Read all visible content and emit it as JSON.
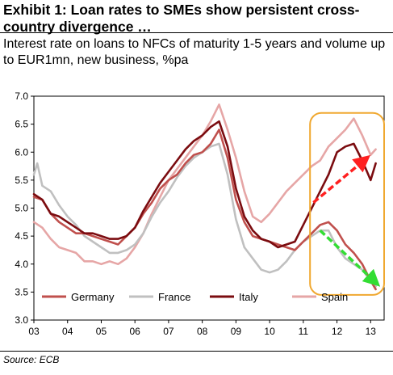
{
  "exhibit": {
    "title": "Exhibit 1: Loan rates to SMEs show persistent cross-country divergence …",
    "subtitle": "Interest rate on loans to NFCs of maturity 1-5 years and volume up to EUR1mn, new business, %pa",
    "source": "Source: ECB"
  },
  "chart_data": {
    "type": "line",
    "title": "",
    "xlabel": "",
    "ylabel": "",
    "xlim": [
      2003,
      2013.4
    ],
    "ylim": [
      3.0,
      7.0
    ],
    "x_ticks": [
      "03",
      "04",
      "05",
      "06",
      "07",
      "08",
      "09",
      "10",
      "11",
      "12",
      "13"
    ],
    "y_ticks": [
      "7.0",
      "6.5",
      "6.0",
      "5.5",
      "5.0",
      "4.5",
      "4.0",
      "3.5",
      "3.0"
    ],
    "grid": false,
    "legend_position": "bottom-inside",
    "series": [
      {
        "name": "Germany",
        "color": "#c0504d",
        "points": [
          [
            2003,
            5.2
          ],
          [
            2003.25,
            5.15
          ],
          [
            2003.5,
            4.9
          ],
          [
            2003.75,
            4.75
          ],
          [
            2004,
            4.65
          ],
          [
            2004.25,
            4.55
          ],
          [
            2004.5,
            4.55
          ],
          [
            2004.75,
            4.5
          ],
          [
            2005,
            4.45
          ],
          [
            2005.25,
            4.4
          ],
          [
            2005.5,
            4.35
          ],
          [
            2005.75,
            4.5
          ],
          [
            2006,
            4.65
          ],
          [
            2006.25,
            4.9
          ],
          [
            2006.5,
            5.1
          ],
          [
            2006.75,
            5.35
          ],
          [
            2007,
            5.5
          ],
          [
            2007.25,
            5.6
          ],
          [
            2007.5,
            5.8
          ],
          [
            2007.75,
            5.95
          ],
          [
            2008,
            6.0
          ],
          [
            2008.25,
            6.15
          ],
          [
            2008.5,
            6.4
          ],
          [
            2008.75,
            5.9
          ],
          [
            2009,
            5.15
          ],
          [
            2009.25,
            4.75
          ],
          [
            2009.5,
            4.5
          ],
          [
            2009.75,
            4.45
          ],
          [
            2010,
            4.4
          ],
          [
            2010.25,
            4.35
          ],
          [
            2010.5,
            4.3
          ],
          [
            2010.75,
            4.25
          ],
          [
            2011,
            4.4
          ],
          [
            2011.25,
            4.55
          ],
          [
            2011.5,
            4.7
          ],
          [
            2011.75,
            4.75
          ],
          [
            2012,
            4.6
          ],
          [
            2012.25,
            4.35
          ],
          [
            2012.5,
            4.2
          ],
          [
            2012.75,
            4.0
          ],
          [
            2013,
            3.7
          ],
          [
            2013.15,
            3.55
          ]
        ]
      },
      {
        "name": "France",
        "color": "#c0c0c0",
        "points": [
          [
            2003,
            5.6
          ],
          [
            2003.1,
            5.8
          ],
          [
            2003.25,
            5.4
          ],
          [
            2003.5,
            5.3
          ],
          [
            2003.75,
            5.05
          ],
          [
            2004,
            4.85
          ],
          [
            2004.25,
            4.7
          ],
          [
            2004.5,
            4.5
          ],
          [
            2004.75,
            4.4
          ],
          [
            2005,
            4.3
          ],
          [
            2005.25,
            4.2
          ],
          [
            2005.5,
            4.2
          ],
          [
            2005.75,
            4.25
          ],
          [
            2006,
            4.35
          ],
          [
            2006.25,
            4.55
          ],
          [
            2006.5,
            4.85
          ],
          [
            2006.75,
            5.1
          ],
          [
            2007,
            5.3
          ],
          [
            2007.25,
            5.55
          ],
          [
            2007.5,
            5.75
          ],
          [
            2007.75,
            5.9
          ],
          [
            2008,
            6.0
          ],
          [
            2008.25,
            6.1
          ],
          [
            2008.5,
            6.15
          ],
          [
            2008.75,
            5.6
          ],
          [
            2009,
            4.8
          ],
          [
            2009.25,
            4.3
          ],
          [
            2009.5,
            4.1
          ],
          [
            2009.75,
            3.9
          ],
          [
            2010,
            3.85
          ],
          [
            2010.25,
            3.9
          ],
          [
            2010.5,
            4.05
          ],
          [
            2010.75,
            4.25
          ],
          [
            2011,
            4.4
          ],
          [
            2011.25,
            4.5
          ],
          [
            2011.5,
            4.6
          ],
          [
            2011.75,
            4.6
          ],
          [
            2012,
            4.3
          ],
          [
            2012.25,
            4.1
          ],
          [
            2012.5,
            4.0
          ],
          [
            2012.75,
            3.9
          ],
          [
            2013,
            3.7
          ],
          [
            2013.15,
            3.6
          ]
        ]
      },
      {
        "name": "Italy",
        "color": "#7b0c10",
        "points": [
          [
            2003,
            5.25
          ],
          [
            2003.25,
            5.15
          ],
          [
            2003.5,
            4.9
          ],
          [
            2003.75,
            4.85
          ],
          [
            2004,
            4.75
          ],
          [
            2004.25,
            4.65
          ],
          [
            2004.5,
            4.55
          ],
          [
            2004.75,
            4.55
          ],
          [
            2005,
            4.5
          ],
          [
            2005.25,
            4.45
          ],
          [
            2005.5,
            4.45
          ],
          [
            2005.75,
            4.5
          ],
          [
            2006,
            4.65
          ],
          [
            2006.25,
            4.95
          ],
          [
            2006.5,
            5.2
          ],
          [
            2006.75,
            5.45
          ],
          [
            2007,
            5.65
          ],
          [
            2007.25,
            5.85
          ],
          [
            2007.5,
            6.05
          ],
          [
            2007.75,
            6.2
          ],
          [
            2008,
            6.3
          ],
          [
            2008.25,
            6.45
          ],
          [
            2008.5,
            6.55
          ],
          [
            2008.75,
            6.1
          ],
          [
            2009,
            5.35
          ],
          [
            2009.25,
            4.85
          ],
          [
            2009.5,
            4.6
          ],
          [
            2009.75,
            4.45
          ],
          [
            2010,
            4.4
          ],
          [
            2010.25,
            4.3
          ],
          [
            2010.5,
            4.35
          ],
          [
            2010.75,
            4.4
          ],
          [
            2011,
            4.7
          ],
          [
            2011.25,
            5.0
          ],
          [
            2011.5,
            5.3
          ],
          [
            2011.75,
            5.6
          ],
          [
            2012,
            6.0
          ],
          [
            2012.25,
            6.1
          ],
          [
            2012.5,
            6.15
          ],
          [
            2012.75,
            5.85
          ],
          [
            2013,
            5.5
          ],
          [
            2013.15,
            5.8
          ]
        ]
      },
      {
        "name": "Spain",
        "color": "#e6a6a6",
        "points": [
          [
            2003,
            4.75
          ],
          [
            2003.25,
            4.65
          ],
          [
            2003.5,
            4.45
          ],
          [
            2003.75,
            4.3
          ],
          [
            2004,
            4.25
          ],
          [
            2004.25,
            4.2
          ],
          [
            2004.5,
            4.05
          ],
          [
            2004.75,
            4.05
          ],
          [
            2005,
            4.0
          ],
          [
            2005.25,
            4.05
          ],
          [
            2005.5,
            4.0
          ],
          [
            2005.75,
            4.1
          ],
          [
            2006,
            4.3
          ],
          [
            2006.25,
            4.55
          ],
          [
            2006.5,
            4.9
          ],
          [
            2006.75,
            5.2
          ],
          [
            2007,
            5.5
          ],
          [
            2007.25,
            5.7
          ],
          [
            2007.5,
            5.9
          ],
          [
            2007.75,
            6.1
          ],
          [
            2008,
            6.3
          ],
          [
            2008.25,
            6.55
          ],
          [
            2008.5,
            6.85
          ],
          [
            2008.75,
            6.4
          ],
          [
            2009,
            5.9
          ],
          [
            2009.25,
            5.3
          ],
          [
            2009.5,
            4.85
          ],
          [
            2009.75,
            4.75
          ],
          [
            2010,
            4.9
          ],
          [
            2010.25,
            5.1
          ],
          [
            2010.5,
            5.3
          ],
          [
            2010.75,
            5.45
          ],
          [
            2011,
            5.6
          ],
          [
            2011.25,
            5.75
          ],
          [
            2011.5,
            5.85
          ],
          [
            2011.75,
            6.1
          ],
          [
            2012,
            6.25
          ],
          [
            2012.25,
            6.4
          ],
          [
            2012.5,
            6.6
          ],
          [
            2012.75,
            6.3
          ],
          [
            2013,
            5.95
          ],
          [
            2013.15,
            6.05
          ]
        ]
      }
    ],
    "annotations": [
      {
        "type": "rounded-rectangle",
        "color": "#f0a830",
        "x_range": [
          2011.2,
          2013.4
        ],
        "y_range": [
          3.45,
          6.7
        ]
      },
      {
        "type": "arrow",
        "color": "#ff2020",
        "from": [
          2011.3,
          5.1
        ],
        "to": [
          2012.8,
          5.85
        ]
      },
      {
        "type": "arrow",
        "color": "#33dd33",
        "from": [
          2011.5,
          4.6
        ],
        "to": [
          2013.1,
          3.7
        ]
      }
    ]
  }
}
